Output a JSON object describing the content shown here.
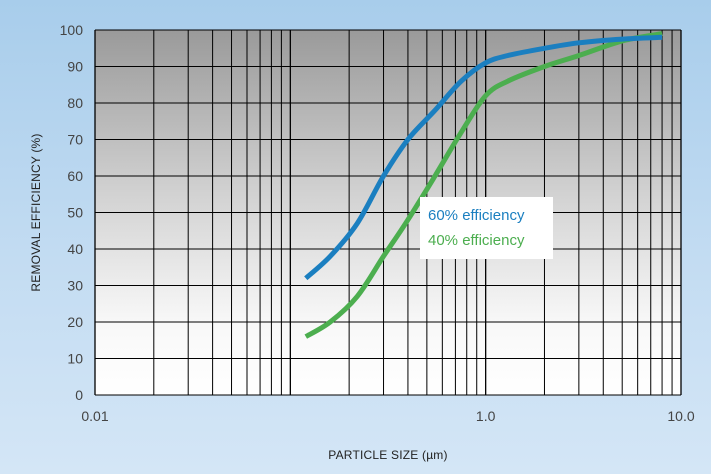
{
  "chart_data": {
    "type": "line",
    "xlabel": "PARTICLE SIZE (µm)",
    "ylabel": "REMOVAL EFFICIENCY (%)",
    "x_scale": "log",
    "xlim": [
      0.01,
      10.0
    ],
    "ylim": [
      0,
      100
    ],
    "x_ticks": [
      {
        "value": 0.01,
        "label": "0.01"
      },
      {
        "value": 1.0,
        "label": "1.0"
      },
      {
        "value": 10.0,
        "label": "10.0"
      }
    ],
    "y_ticks": [
      0,
      10,
      20,
      30,
      40,
      50,
      60,
      70,
      80,
      90,
      100
    ],
    "grid": true,
    "legend_position": "center-right",
    "series": [
      {
        "name": "60% efficiency",
        "color": "#1b7fc0",
        "x": [
          0.12,
          0.16,
          0.22,
          0.3,
          0.4,
          0.55,
          0.75,
          1.0,
          1.3,
          2.0,
          3.0,
          5.0,
          8.0
        ],
        "y": [
          32,
          38,
          47,
          60,
          70,
          78,
          86,
          91,
          93,
          95,
          96.5,
          97.5,
          98
        ]
      },
      {
        "name": "40% efficiency",
        "color": "#4cae4f",
        "x": [
          0.12,
          0.16,
          0.22,
          0.3,
          0.4,
          0.55,
          0.75,
          1.0,
          1.3,
          2.0,
          3.0,
          5.0,
          8.0
        ],
        "y": [
          16,
          20,
          27,
          38,
          48,
          60,
          72,
          82,
          86,
          90,
          93,
          97,
          99
        ]
      }
    ]
  }
}
